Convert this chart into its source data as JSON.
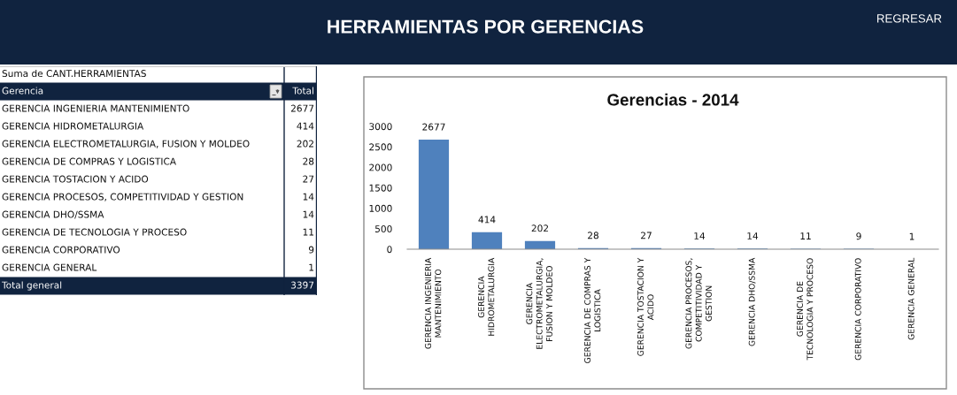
{
  "chart_data": [
    {
      "type": "other",
      "title": "HERRAMIENTAS POR GERENCIAS",
      "annotations": [
        "REGRESAR"
      ]
    },
    {
      "type": "other",
      "title": "Suma de CANT.HERRAMIENTAS",
      "categories": [
        "GERENCIA INGENIERIA MANTENIMIENTO",
        "GERENCIA HIDROMETALURGIA",
        "GERENCIA ELECTROMETALURGIA, FUSION Y MOLDEO",
        "GERENCIA DE COMPRAS Y LOGISTICA",
        "GERENCIA TOSTACION Y ACIDO",
        "GERENCIA PROCESOS, COMPETITIVIDAD Y GESTION",
        "GERENCIA DHO/SSMA",
        "GERENCIA DE TECNOLOGIA Y PROCESO",
        "GERENCIA CORPORATIVO",
        "GERENCIA GENERAL"
      ],
      "values": [
        2677,
        414,
        202,
        28,
        27,
        14,
        14,
        11,
        9,
        1
      ],
      "data_labels": true,
      "annotations": [
        "Gerencia",
        "Total",
        "Total general",
        "3397"
      ]
    },
    {
      "type": "bar",
      "title": "Gerencias - 2014",
      "categories": [
        "GERENCIA INGENIERIA MANTENIMIENTO",
        "GERENCIA HIDROMETALURGIA",
        "GERENCIA ELECTROMETALURGIA, FUSION Y MOLDEO",
        "GERENCIA DE COMPRAS Y LOGISTICA",
        "GERENCIA TOSTACION Y ACIDO",
        "GERENCIA PROCESOS, COMPETITIVIDAD Y GESTION",
        "GERENCIA DHO/SSMA",
        "GERENCIA DE TECNOLOGIA Y PROCESO",
        "GERENCIA CORPORATIVO",
        "GERENCIA GENERAL"
      ],
      "values": [
        2677,
        414,
        202,
        28,
        27,
        14,
        14,
        11,
        9,
        1
      ],
      "color": "#4f81bd",
      "ylim": [
        0,
        3000
      ],
      "yticks": [
        0,
        500,
        1000,
        1500,
        2000,
        2500,
        3000
      ],
      "data_labels": true
    }
  ]
}
